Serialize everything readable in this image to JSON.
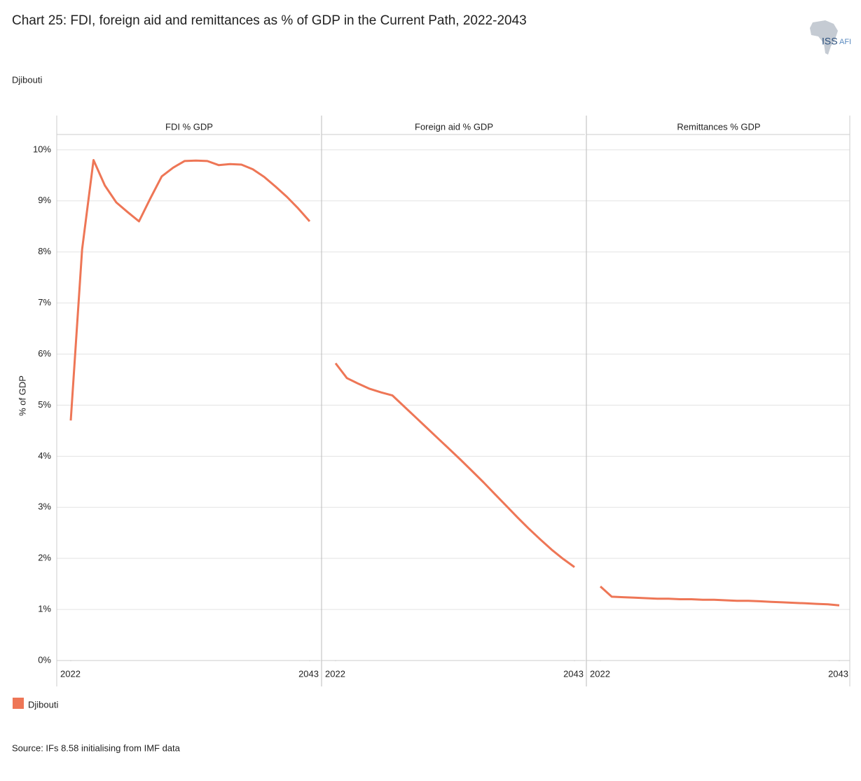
{
  "chart_data": {
    "type": "line",
    "title": "Chart 25: FDI, foreign aid and remittances as % of GDP in the Current Path, 2022-2043",
    "subtitle": "Djibouti",
    "logo": "ISS",
    "logo_suffix": "AFI",
    "y_label": "% of GDP",
    "source": "Source: IFs 8.58 initialising from IMF data",
    "facets": [
      "FDI % GDP",
      "Foreign aid % GDP",
      "Remittances % GDP"
    ],
    "x": [
      2022,
      2023,
      2024,
      2025,
      2026,
      2027,
      2028,
      2029,
      2030,
      2031,
      2032,
      2033,
      2034,
      2035,
      2036,
      2037,
      2038,
      2039,
      2040,
      2041,
      2042,
      2043
    ],
    "xlim": [
      2022,
      2043
    ],
    "xticks": [
      2022,
      2043
    ],
    "ylim": [
      0,
      10.3
    ],
    "yticks": [
      {
        "value": 0,
        "label": "0%"
      },
      {
        "value": 1,
        "label": "1%"
      },
      {
        "value": 2,
        "label": "2%"
      },
      {
        "value": 3,
        "label": "3%"
      },
      {
        "value": 4,
        "label": "4%"
      },
      {
        "value": 5,
        "label": "5%"
      },
      {
        "value": 6,
        "label": "6%"
      },
      {
        "value": 7,
        "label": "7%"
      },
      {
        "value": 8,
        "label": "8%"
      },
      {
        "value": 9,
        "label": "9%"
      },
      {
        "value": 10,
        "label": "10%"
      }
    ],
    "grid": true,
    "series": [
      {
        "name": "Djibouti",
        "color": "#ee7656",
        "values": [
          [
            4.7,
            8.05,
            9.8,
            9.3,
            8.97,
            8.78,
            8.6,
            9.05,
            9.48,
            9.65,
            9.78,
            9.79,
            9.78,
            9.7,
            9.72,
            9.71,
            9.62,
            9.47,
            9.28,
            9.08,
            8.85,
            8.6
          ],
          [
            5.82,
            5.53,
            5.42,
            5.32,
            5.25,
            5.19,
            4.98,
            4.77,
            4.56,
            4.35,
            4.14,
            3.93,
            3.71,
            3.49,
            3.26,
            3.03,
            2.8,
            2.58,
            2.37,
            2.17,
            1.99,
            1.83
          ],
          [
            1.45,
            1.25,
            1.24,
            1.23,
            1.22,
            1.21,
            1.21,
            1.2,
            1.2,
            1.19,
            1.19,
            1.18,
            1.17,
            1.17,
            1.16,
            1.15,
            1.14,
            1.13,
            1.12,
            1.11,
            1.1,
            1.08
          ]
        ]
      }
    ]
  }
}
